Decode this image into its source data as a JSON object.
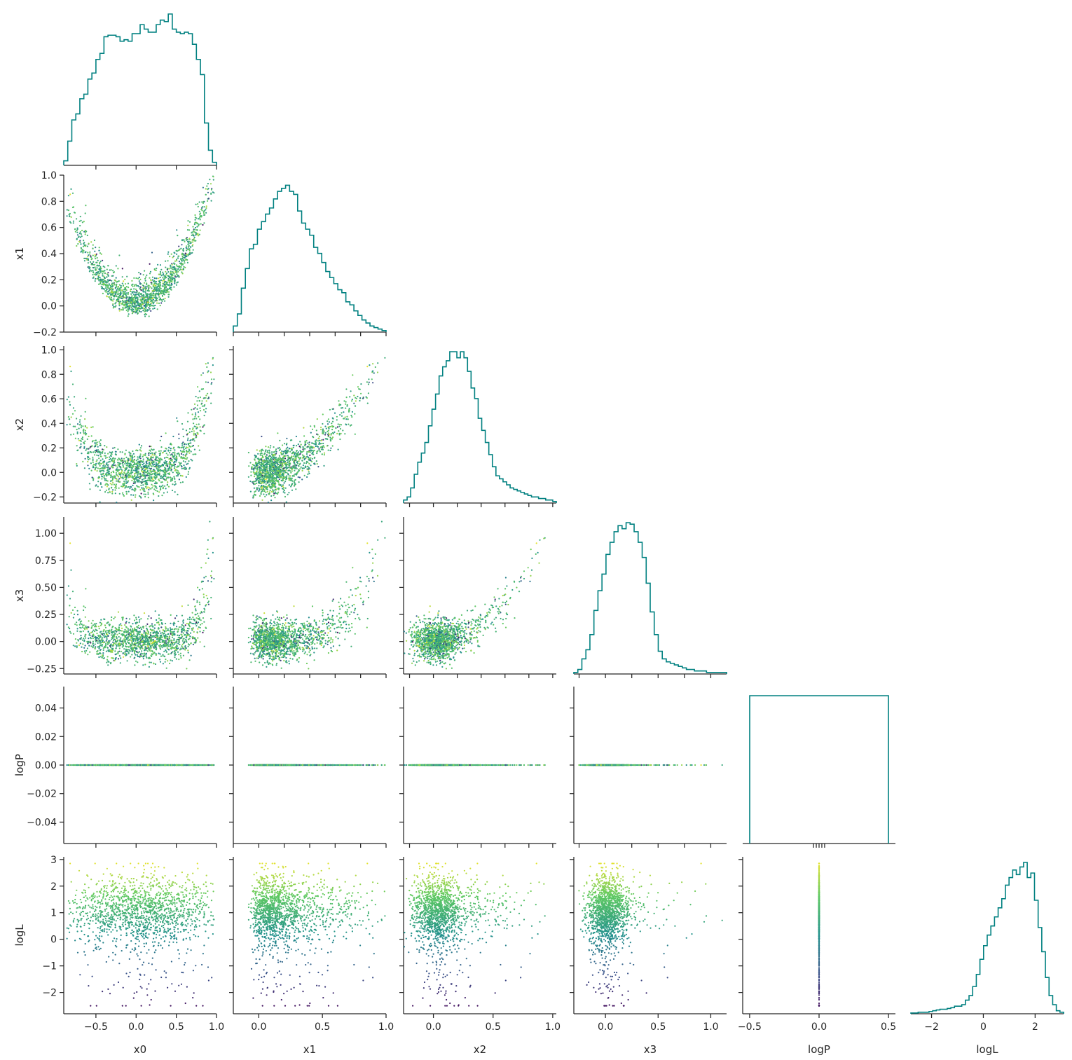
{
  "chart_data": {
    "type": "corner",
    "variables": [
      "x0",
      "x1",
      "x2",
      "x3",
      "logP",
      "logL"
    ],
    "colors": {
      "histogram": "#008080",
      "colormap": [
        "#440154",
        "#3b528b",
        "#21918c",
        "#5ec962",
        "#fde725"
      ],
      "text": "#262626"
    },
    "colored_by": "logL",
    "ranges": {
      "x0": [
        -0.9,
        1.0
      ],
      "x1": [
        -0.2,
        1.0
      ],
      "x2": [
        -0.25,
        1.03
      ],
      "x3": [
        -0.3,
        1.15
      ],
      "logP": [
        -0.055,
        0.055
      ],
      "logL": [
        -2.8,
        3.1
      ]
    },
    "hist_ranges": {
      "x0": [
        -0.9,
        1.0
      ],
      "x1": [
        -0.2,
        1.0
      ],
      "x2": [
        -0.25,
        1.05
      ],
      "x3": [
        -0.3,
        1.15
      ],
      "logP": [
        -0.55,
        0.55
      ],
      "logL": [
        -2.8,
        3.1
      ]
    },
    "ticks": {
      "x0": [
        "-0.5",
        "0.0",
        "0.5",
        "1.0"
      ],
      "x1": [
        "-0.2",
        "0.0",
        "0.2",
        "0.4",
        "0.6",
        "0.8",
        "1.0"
      ],
      "x1_bottom": [
        "0.0",
        "0.5",
        "1.0"
      ],
      "x2": [
        "-0.2",
        "0.0",
        "0.2",
        "0.4",
        "0.6",
        "0.8",
        "1.0"
      ],
      "x2_bottom": [
        "0.0",
        "0.5",
        "1.0"
      ],
      "x3": [
        "-0.25",
        "0.00",
        "0.25",
        "0.50",
        "0.75",
        "1.00"
      ],
      "x3_bottom": [
        "0.0",
        "0.5",
        "1.0"
      ],
      "logP": [
        "-0.04",
        "-0.02",
        "0.00",
        "0.02",
        "0.04"
      ],
      "logP_bottom": [
        "-0.5",
        "0.0",
        "0.5"
      ],
      "logL": [
        "-2",
        "-1",
        "0",
        "1",
        "2",
        "3"
      ],
      "logL_bottom": [
        "-2",
        "0",
        "2"
      ]
    },
    "histograms": {
      "x0": [
        0.03,
        0.16,
        0.3,
        0.34,
        0.44,
        0.47,
        0.57,
        0.61,
        0.7,
        0.74,
        0.85,
        0.86,
        0.86,
        0.85,
        0.82,
        0.83,
        0.82,
        0.87,
        0.87,
        0.93,
        0.9,
        0.88,
        0.88,
        0.93,
        0.96,
        0.95,
        1.0,
        0.9,
        0.88,
        0.87,
        0.88,
        0.87,
        0.8,
        0.7,
        0.6,
        0.28,
        0.1,
        0.02
      ],
      "x1": [
        0.04,
        0.12,
        0.29,
        0.42,
        0.55,
        0.58,
        0.68,
        0.73,
        0.78,
        0.82,
        0.88,
        0.93,
        0.95,
        0.97,
        0.93,
        0.91,
        0.8,
        0.72,
        0.68,
        0.64,
        0.56,
        0.52,
        0.46,
        0.4,
        0.36,
        0.32,
        0.28,
        0.26,
        0.2,
        0.18,
        0.14,
        0.11,
        0.08,
        0.06,
        0.04,
        0.03,
        0.02,
        0.01
      ],
      "x2": [
        0.02,
        0.04,
        0.1,
        0.19,
        0.27,
        0.33,
        0.4,
        0.51,
        0.62,
        0.72,
        0.84,
        0.9,
        0.94,
        1.0,
        1.0,
        0.96,
        1.0,
        0.96,
        0.87,
        0.76,
        0.69,
        0.56,
        0.48,
        0.4,
        0.32,
        0.24,
        0.18,
        0.16,
        0.14,
        0.12,
        0.1,
        0.09,
        0.08,
        0.07,
        0.06,
        0.05,
        0.04,
        0.04,
        0.03,
        0.03,
        0.02,
        0.02,
        0.01
      ],
      "x3": [
        0.01,
        0.03,
        0.1,
        0.16,
        0.26,
        0.42,
        0.55,
        0.66,
        0.79,
        0.87,
        0.94,
        0.98,
        0.96,
        1.0,
        0.99,
        0.94,
        0.87,
        0.77,
        0.6,
        0.41,
        0.26,
        0.15,
        0.1,
        0.08,
        0.07,
        0.06,
        0.05,
        0.04,
        0.03,
        0.03,
        0.02,
        0.02,
        0.02,
        0.01,
        0.01,
        0.01,
        0.01,
        0.01
      ],
      "logP": [
        1.0
      ],
      "logL": [
        0.005,
        0.005,
        0.01,
        0.01,
        0.01,
        0.015,
        0.02,
        0.025,
        0.03,
        0.03,
        0.035,
        0.04,
        0.05,
        0.05,
        0.06,
        0.09,
        0.12,
        0.18,
        0.26,
        0.36,
        0.45,
        0.52,
        0.58,
        0.64,
        0.7,
        0.76,
        0.85,
        0.9,
        0.95,
        0.92,
        0.97,
        1.0,
        0.9,
        0.93,
        0.75,
        0.57,
        0.41,
        0.24,
        0.12,
        0.06,
        0.02,
        0.01
      ]
    },
    "scatter_points_per_panel": 1500
  }
}
